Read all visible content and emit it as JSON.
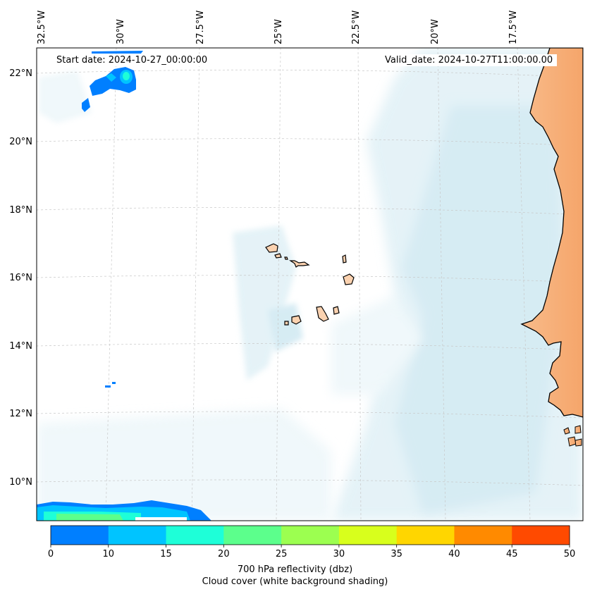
{
  "map": {
    "lon_labels": [
      "32.5°W",
      "30°W",
      "27.5°W",
      "25°W",
      "22.5°W",
      "20°W",
      "17.5°W"
    ],
    "lat_labels": [
      "22°N",
      "20°N",
      "18°N",
      "16°N",
      "14°N",
      "12°N",
      "10°N"
    ],
    "start_date": "Start date: 2024-10-27_00:00:00",
    "valid_date": "Valid_date: 2024-10-27T11:00:00.00",
    "land_color": "#f6a969",
    "island_color": "#fbd2b0",
    "cloud_color": "#a9d7e6"
  },
  "colorbar": {
    "ticks": [
      "0",
      "10",
      "15",
      "20",
      "25",
      "30",
      "35",
      "40",
      "45",
      "50"
    ],
    "colors": [
      "#007fff",
      "#00c4ff",
      "#1effd8",
      "#5cff8c",
      "#9cff50",
      "#d8ff1c",
      "#ffd600",
      "#ff8a00",
      "#ff4a00"
    ],
    "title": "700 hPa reflectivity (dbz)",
    "subtitle": "Cloud cover (white background shading)"
  }
}
